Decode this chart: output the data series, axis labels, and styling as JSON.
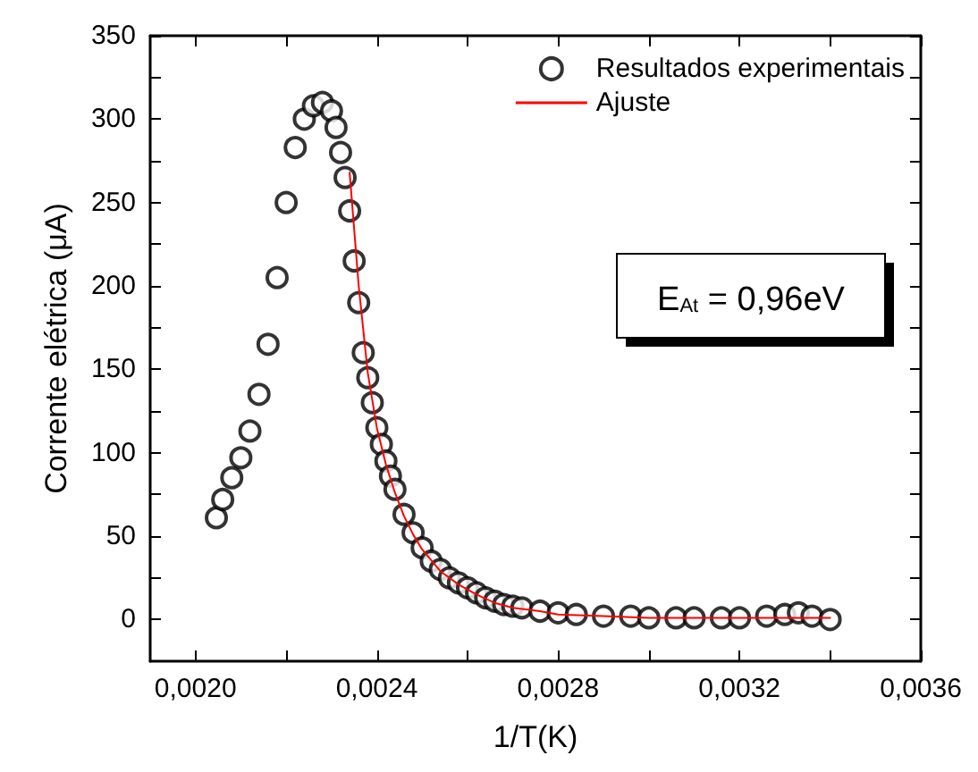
{
  "chart_data": {
    "type": "scatter",
    "xlabel": "1/T(K)",
    "ylabel": "Corrente elétrica (μA)",
    "xlim": [
      0.0019,
      0.0036
    ],
    "xticks": [
      {
        "value": 0.002,
        "label": "0,0020"
      },
      {
        "value": 0.0022,
        "label": null
      },
      {
        "value": 0.0024,
        "label": "0,0024"
      },
      {
        "value": 0.0026,
        "label": null
      },
      {
        "value": 0.0028,
        "label": "0,0028"
      },
      {
        "value": 0.003,
        "label": null
      },
      {
        "value": 0.0032,
        "label": "0,0032"
      },
      {
        "value": 0.0034,
        "label": null
      },
      {
        "value": 0.0036,
        "label": "0,0036"
      }
    ],
    "ylim": [
      -25,
      350
    ],
    "yticks": [
      0,
      {
        "value": 25,
        "label": null
      },
      50,
      {
        "value": 75,
        "label": null
      },
      100,
      {
        "value": 125,
        "label": null
      },
      150,
      {
        "value": 175,
        "label": null
      },
      200,
      {
        "value": 225,
        "label": null
      },
      250,
      {
        "value": 275,
        "label": null
      },
      300,
      {
        "value": 325,
        "label": null
      },
      350
    ],
    "grid": false,
    "legend": "top right",
    "annotations": [
      "E$_{At}$ = 0,96eV"
    ],
    "series": [
      {
        "name": "Resultados experimentais",
        "marker": "circle",
        "color": "#000000",
        "x": [
          0.002046,
          0.00206,
          0.00208,
          0.0021,
          0.00212,
          0.00214,
          0.00216,
          0.00218,
          0.0022,
          0.00222,
          0.00224,
          0.00226,
          0.00228,
          0.0023,
          0.00231,
          0.00232,
          0.00233,
          0.00234,
          0.00235,
          0.00236,
          0.00237,
          0.00238,
          0.00239,
          0.0024,
          0.00241,
          0.00242,
          0.00243,
          0.00244,
          0.00246,
          0.00248,
          0.0025,
          0.00252,
          0.00254,
          0.00256,
          0.00258,
          0.0026,
          0.00262,
          0.00264,
          0.00266,
          0.00268,
          0.0027,
          0.00272,
          0.00276,
          0.0028,
          0.00284,
          0.0029,
          0.00296,
          0.003,
          0.00306,
          0.0031,
          0.00316,
          0.0032,
          0.00326,
          0.0033,
          0.00333,
          0.00336,
          0.0034
        ],
        "values": [
          61,
          72,
          85,
          97,
          113,
          135,
          165,
          205,
          250,
          283,
          300,
          308,
          310,
          305,
          295,
          280,
          265,
          245,
          215,
          190,
          160,
          145,
          130,
          115,
          105,
          95,
          86,
          78,
          63,
          52,
          43,
          35,
          30,
          25,
          22,
          19,
          16,
          13,
          11,
          9,
          8,
          7,
          5,
          4,
          3,
          2,
          2,
          1,
          1,
          1,
          1,
          1,
          2,
          3,
          4,
          2,
          0
        ]
      },
      {
        "name": "Ajuste",
        "type": "line",
        "marker": "none",
        "line_style": "solid",
        "color": "#ff0000",
        "x": [
          0.00234,
          0.00236,
          0.00238,
          0.0024,
          0.00242,
          0.00244,
          0.00246,
          0.00248,
          0.0025,
          0.00254,
          0.00258,
          0.00262,
          0.00266,
          0.0027,
          0.00276,
          0.0028,
          0.0029,
          0.003,
          0.0031,
          0.0032,
          0.0033,
          0.0034
        ],
        "values": [
          268,
          200,
          148,
          115,
          93,
          76,
          62,
          51,
          42,
          29,
          21,
          15,
          10,
          7,
          5,
          3,
          2,
          1,
          1,
          1,
          1,
          1
        ]
      }
    ]
  }
}
